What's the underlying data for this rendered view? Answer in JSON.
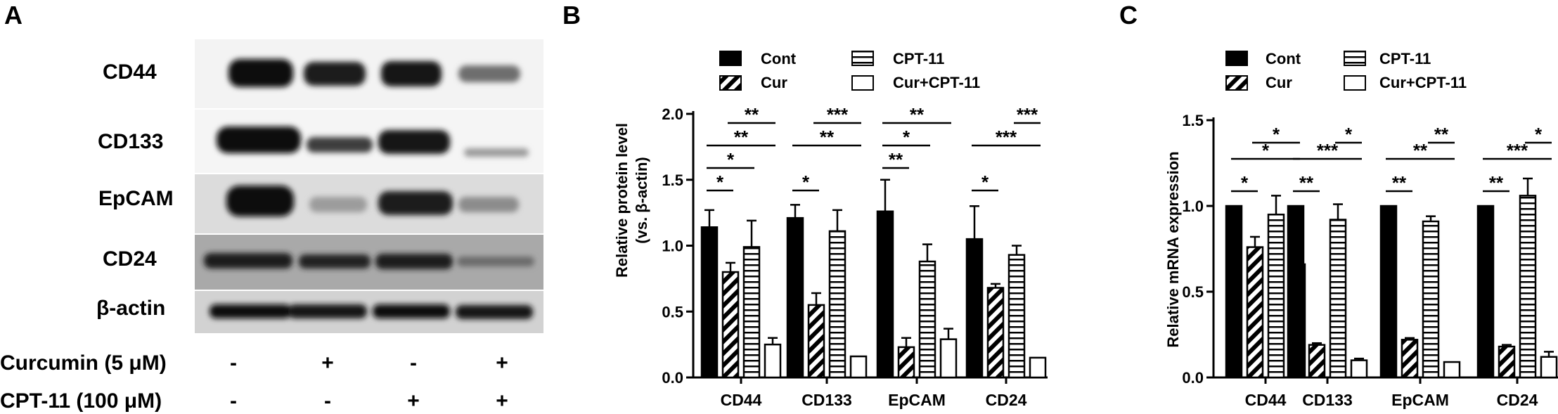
{
  "panels": {
    "A": {
      "letter": "A",
      "bands": [
        "CD44",
        "CD133",
        "EpCAM",
        "CD24",
        "β-actin"
      ],
      "treatments": [
        {
          "label": "Curcumin (5 μM)",
          "signs": [
            "-",
            "+",
            "-",
            "+"
          ]
        },
        {
          "label": "CPT-11 (100 μM)",
          "signs": [
            "-",
            "-",
            "+",
            "+"
          ]
        }
      ]
    },
    "B": {
      "letter": "B"
    },
    "C": {
      "letter": "C"
    }
  },
  "legend": [
    "Cont",
    "Cur",
    "CPT-11",
    "Cur+CPT-11"
  ],
  "colors": {
    "ink": "#000000",
    "background": "#ffffff"
  },
  "chart_data": [
    {
      "panel": "B",
      "type": "bar",
      "ylabel": "Relative protein level (vs. β-actin)",
      "ylabel_lines": [
        "Relative protein level",
        "(vs. β-actin)"
      ],
      "ylim": [
        0,
        2.0
      ],
      "yticks": [
        "0.0",
        "0.5",
        "1.0",
        "1.5",
        "2.0"
      ],
      "ytick_values": [
        0,
        0.5,
        1.0,
        1.5,
        2.0
      ],
      "categories": [
        "CD44",
        "CD133",
        "EpCAM",
        "CD24"
      ],
      "series": [
        {
          "name": "Cont",
          "values": [
            1.14,
            1.21,
            1.26,
            1.05
          ],
          "errors": [
            0.13,
            0.1,
            0.24,
            0.25
          ]
        },
        {
          "name": "Cur",
          "values": [
            0.8,
            0.55,
            0.23,
            0.68
          ],
          "errors": [
            0.07,
            0.09,
            0.07,
            0.03
          ]
        },
        {
          "name": "CPT-11",
          "values": [
            0.99,
            1.11,
            0.88,
            0.93
          ],
          "errors": [
            0.2,
            0.16,
            0.13,
            0.07
          ]
        },
        {
          "name": "Cur+CPT-11",
          "values": [
            0.25,
            0.16,
            0.29,
            0.15
          ],
          "errors": [
            0.05,
            0.0,
            0.08,
            0.0
          ]
        }
      ],
      "significance": [
        {
          "category": 0,
          "from": 0,
          "to": 1,
          "level": 0,
          "label": "*"
        },
        {
          "category": 0,
          "from": 0,
          "to": 2,
          "level": 1,
          "label": "*"
        },
        {
          "category": 0,
          "from": 0,
          "to": 3,
          "level": 2,
          "label": "**"
        },
        {
          "category": 0,
          "from": 1,
          "to": 3,
          "level": 3,
          "label": "**"
        },
        {
          "category": 1,
          "from": 0,
          "to": 1,
          "level": 0,
          "label": "*"
        },
        {
          "category": 1,
          "from": 0,
          "to": 3,
          "level": 2,
          "label": "**"
        },
        {
          "category": 1,
          "from": 1,
          "to": 3,
          "level": 3,
          "label": "***"
        },
        {
          "category": 2,
          "from": 0,
          "to": 1,
          "level": 1,
          "label": "**"
        },
        {
          "category": 2,
          "from": 0,
          "to": 2,
          "level": 2,
          "label": "*"
        },
        {
          "category": 2,
          "from": 0,
          "to": 3,
          "level": 3,
          "label": "**"
        },
        {
          "category": 3,
          "from": 0,
          "to": 1,
          "level": 0,
          "label": "*"
        },
        {
          "category": 3,
          "from": 0,
          "to": 3,
          "level": 2,
          "label": "***"
        },
        {
          "category": 3,
          "from": 2,
          "to": 3,
          "level": 3,
          "label": "***"
        }
      ]
    },
    {
      "panel": "C",
      "type": "bar",
      "ylabel": "Relative mRNA expression",
      "ylabel_lines": [
        "Relative mRNA expression"
      ],
      "ylim": [
        0,
        1.5
      ],
      "yticks": [
        "0.0",
        "0.5",
        "1.0",
        "1.5"
      ],
      "ytick_values": [
        0,
        0.5,
        1.0,
        1.5
      ],
      "categories": [
        "CD44",
        "CD133",
        "EpCAM",
        "CD24"
      ],
      "series": [
        {
          "name": "Cont",
          "values": [
            1.0,
            1.0,
            1.0,
            1.0
          ],
          "errors": [
            0,
            0,
            0,
            0
          ]
        },
        {
          "name": "Cur",
          "values": [
            0.76,
            0.19,
            0.22,
            0.18
          ],
          "errors": [
            0.06,
            0.01,
            0.01,
            0.01
          ]
        },
        {
          "name": "CPT-11",
          "values": [
            0.95,
            0.92,
            0.91,
            1.06
          ],
          "errors": [
            0.11,
            0.09,
            0.03,
            0.1
          ]
        },
        {
          "name": "Cur+CPT-11",
          "values": [
            0.66,
            0.1,
            0.09,
            0.12
          ],
          "errors": [
            0.07,
            0.01,
            0.0,
            0.03
          ]
        }
      ],
      "significance": [
        {
          "category": 0,
          "from": 0,
          "to": 1,
          "level": 0,
          "label": "*"
        },
        {
          "category": 0,
          "from": 0,
          "to": 3,
          "level": 2,
          "label": "*"
        },
        {
          "category": 0,
          "from": 1,
          "to": 3,
          "level": 3,
          "label": "*"
        },
        {
          "category": 1,
          "from": 0,
          "to": 1,
          "level": 0,
          "label": "**"
        },
        {
          "category": 1,
          "from": 0,
          "to": 3,
          "level": 2,
          "label": "***"
        },
        {
          "category": 1,
          "from": 2,
          "to": 3,
          "level": 3,
          "label": "*"
        },
        {
          "category": 2,
          "from": 0,
          "to": 1,
          "level": 0,
          "label": "**"
        },
        {
          "category": 2,
          "from": 0,
          "to": 3,
          "level": 2,
          "label": "**"
        },
        {
          "category": 2,
          "from": 2,
          "to": 3,
          "level": 3,
          "label": "**"
        },
        {
          "category": 3,
          "from": 0,
          "to": 1,
          "level": 0,
          "label": "**"
        },
        {
          "category": 3,
          "from": 0,
          "to": 3,
          "level": 2,
          "label": "***"
        },
        {
          "category": 3,
          "from": 2,
          "to": 3,
          "level": 3,
          "label": "*"
        }
      ]
    }
  ]
}
